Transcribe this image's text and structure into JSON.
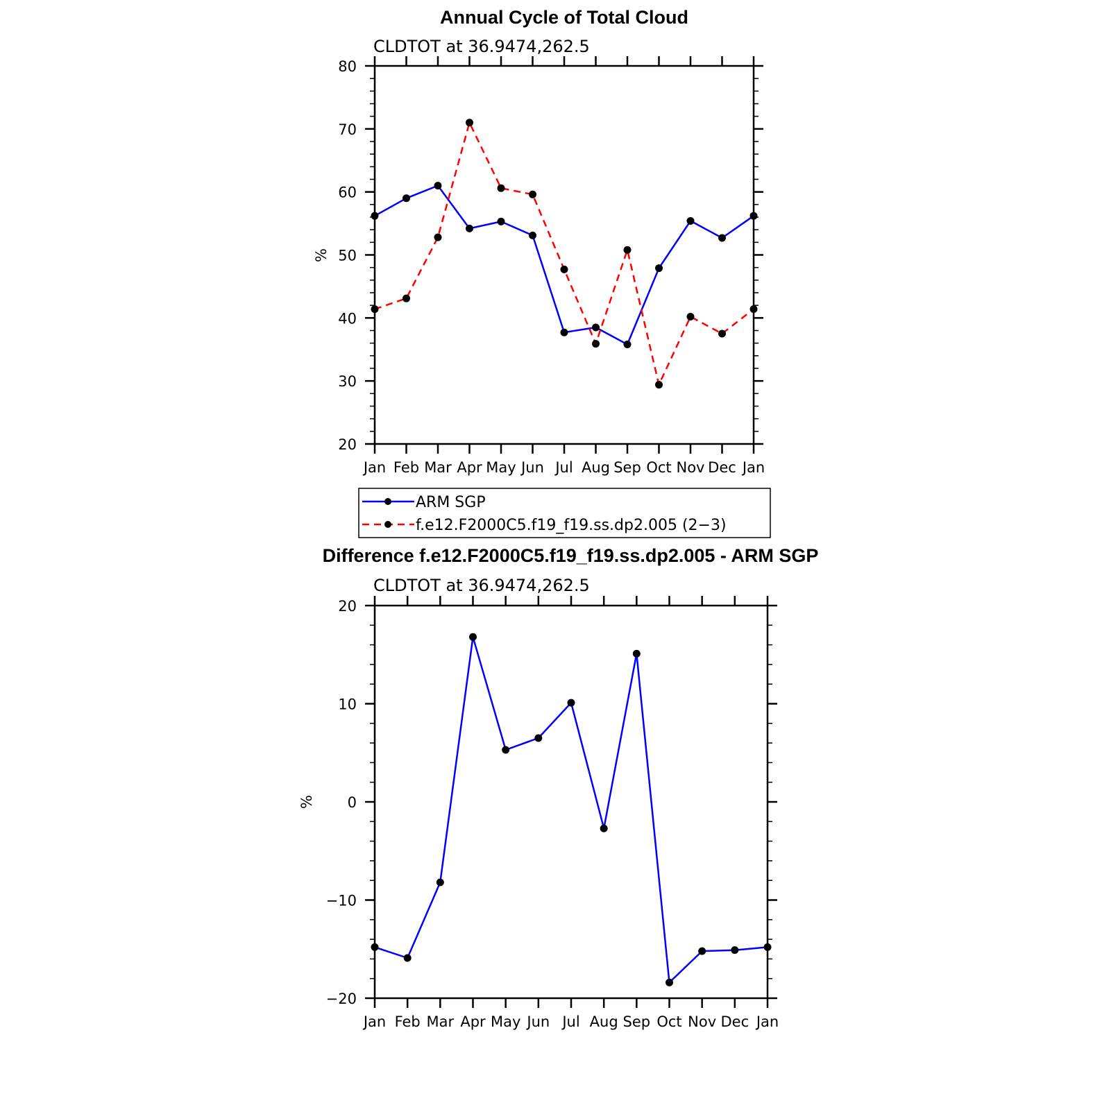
{
  "colors": {
    "series_blue": "#0000ff",
    "series_red": "#ff0000",
    "marker": "#000000",
    "axis": "#000000"
  },
  "chart_data": [
    {
      "type": "line",
      "title": "Annual Cycle of Total Cloud",
      "subtitle": "CLDTOT at 36.9474,262.5",
      "xlabel": "",
      "ylabel": "%",
      "categories": [
        "Jan",
        "Feb",
        "Mar",
        "Apr",
        "May",
        "Jun",
        "Jul",
        "Aug",
        "Sep",
        "Oct",
        "Nov",
        "Dec",
        "Jan"
      ],
      "ylim": [
        20,
        80
      ],
      "yticks": [
        20,
        30,
        40,
        50,
        60,
        70,
        80
      ],
      "series": [
        {
          "name": "ARM SGP",
          "style": "solid",
          "color": "#0000ff",
          "values": [
            56.2,
            59.0,
            61.0,
            54.2,
            55.3,
            53.1,
            37.7,
            38.5,
            35.8,
            47.9,
            55.4,
            52.7,
            56.2
          ]
        },
        {
          "name": "f.e12.F2000C5.f19_f19.ss.dp2.005 (2−3)",
          "style": "dashed",
          "color": "#ff0000",
          "values": [
            41.4,
            43.1,
            52.8,
            71.0,
            60.6,
            59.6,
            47.7,
            35.9,
            50.8,
            29.4,
            40.2,
            37.5,
            41.4
          ]
        }
      ]
    },
    {
      "type": "line",
      "title": "Difference f.e12.F2000C5.f19_f19.ss.dp2.005 - ARM SGP",
      "subtitle": "CLDTOT at 36.9474,262.5",
      "xlabel": "",
      "ylabel": "%",
      "categories": [
        "Jan",
        "Feb",
        "Mar",
        "Apr",
        "May",
        "Jun",
        "Jul",
        "Aug",
        "Sep",
        "Oct",
        "Nov",
        "Dec",
        "Jan"
      ],
      "ylim": [
        -20,
        20
      ],
      "yticks": [
        -20,
        -10,
        0,
        10,
        20
      ],
      "ytick_labels": [
        "−20",
        "−10",
        "0",
        "10",
        "20"
      ],
      "series": [
        {
          "name": "Difference",
          "style": "solid",
          "color": "#0000ff",
          "values": [
            -14.8,
            -15.9,
            -8.2,
            16.8,
            5.3,
            6.5,
            10.1,
            -2.7,
            15.1,
            -18.4,
            -15.2,
            -15.1,
            -14.8
          ]
        }
      ]
    }
  ]
}
